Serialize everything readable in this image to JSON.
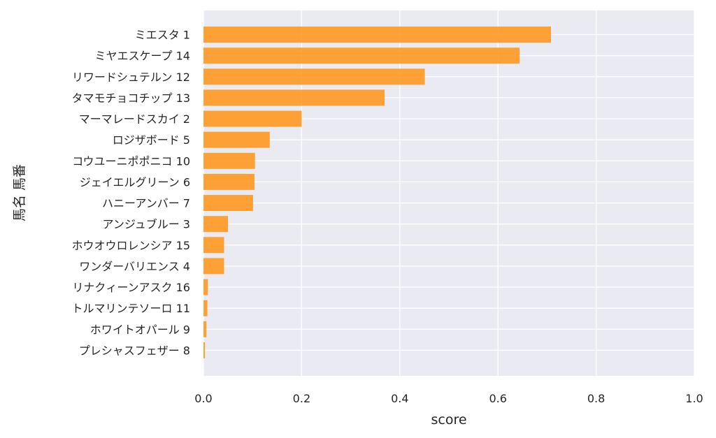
{
  "chart_data": {
    "type": "bar",
    "orientation": "horizontal",
    "xlabel": "score",
    "ylabel": "馬名 馬番",
    "xlim": [
      0.0,
      1.0
    ],
    "xticks": [
      "0.0",
      "0.2",
      "0.4",
      "0.6",
      "0.8",
      "1.0"
    ],
    "grid": true,
    "bar_color": "#ff9922",
    "background_color": "#eaeaf2",
    "categories": [
      "ミエスタ 1",
      "ミヤエスケープ 14",
      "リワードシュテルン 12",
      "タマモチョコチップ 13",
      "マーマレードスカイ 2",
      "ロジザボード 5",
      "コウユーニポポニコ 10",
      "ジェイエルグリーン 6",
      "ハニーアンバー 7",
      "アンジュブルー 3",
      "ホウオウロレンシア 15",
      "ワンダーバリエンス 4",
      "リナクィーンアスク 16",
      "トルマリンテソーロ 11",
      "ホワイトオパール 9",
      "プレシャスフェザー 8"
    ],
    "values": [
      0.708,
      0.644,
      0.451,
      0.369,
      0.2,
      0.135,
      0.105,
      0.104,
      0.101,
      0.05,
      0.042,
      0.042,
      0.009,
      0.008,
      0.006,
      0.003
    ]
  }
}
